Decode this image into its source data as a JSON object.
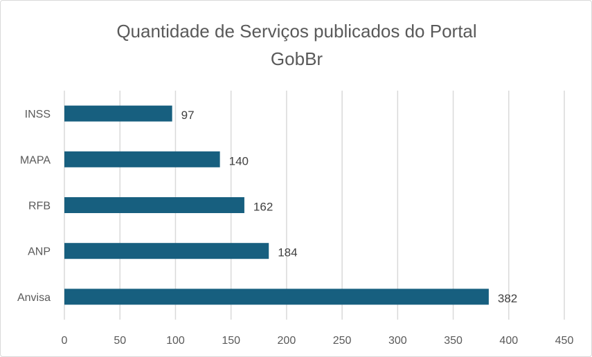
{
  "chart_data": {
    "type": "bar",
    "orientation": "horizontal",
    "title_lines": [
      "Quantidade de Serviços publicados do Portal",
      "GobBr"
    ],
    "categories": [
      "INSS",
      "MAPA",
      "RFB",
      "ANP",
      "Anvisa"
    ],
    "values": [
      97,
      140,
      162,
      184,
      382
    ],
    "xlim": [
      0,
      450
    ],
    "xticks": [
      0,
      50,
      100,
      150,
      200,
      250,
      300,
      350,
      400,
      450
    ],
    "xlabel": "",
    "ylabel": "",
    "grid": "vertical",
    "bar_color": "#175f7f",
    "data_labels": true
  }
}
